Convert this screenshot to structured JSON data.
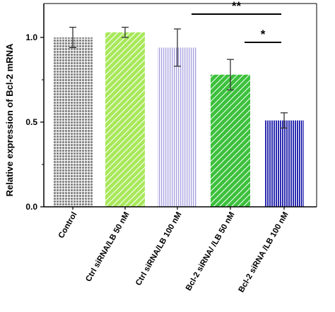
{
  "chart_data": {
    "type": "bar",
    "categories": [
      "Control",
      "Ctrl siRNA/LB 50 nM",
      "Ctrl siRNA/LB 100 nM",
      "Bcl-2 siRNA/ /LB 50 nM",
      "Bcl-2 siRNA /LB 100 nM"
    ],
    "values": [
      1.0,
      1.03,
      0.94,
      0.78,
      0.51
    ],
    "errors": [
      0.06,
      0.03,
      0.11,
      0.09,
      0.045
    ],
    "ylabel": "Relative expression of Bcl-2 mRNA",
    "xlabel": "",
    "ylim": [
      0,
      1.2
    ],
    "yticks": [
      {
        "value": 0.0,
        "label": "0.0"
      },
      {
        "value": 0.5,
        "label": "0.5"
      },
      {
        "value": 1.0,
        "label": "1.0"
      }
    ],
    "grid": false,
    "significance": [
      {
        "from": 2,
        "to": 4,
        "label": "**"
      },
      {
        "from": 3,
        "to": 4,
        "label": "*"
      }
    ],
    "colors": [
      "#8a8a8a",
      "#a8e85a",
      "#a9a3e0",
      "#3cc13c",
      "#2a2ab0"
    ],
    "patterns": [
      "grid",
      "diagonal",
      "vertical",
      "diagonal",
      "vertical"
    ]
  }
}
